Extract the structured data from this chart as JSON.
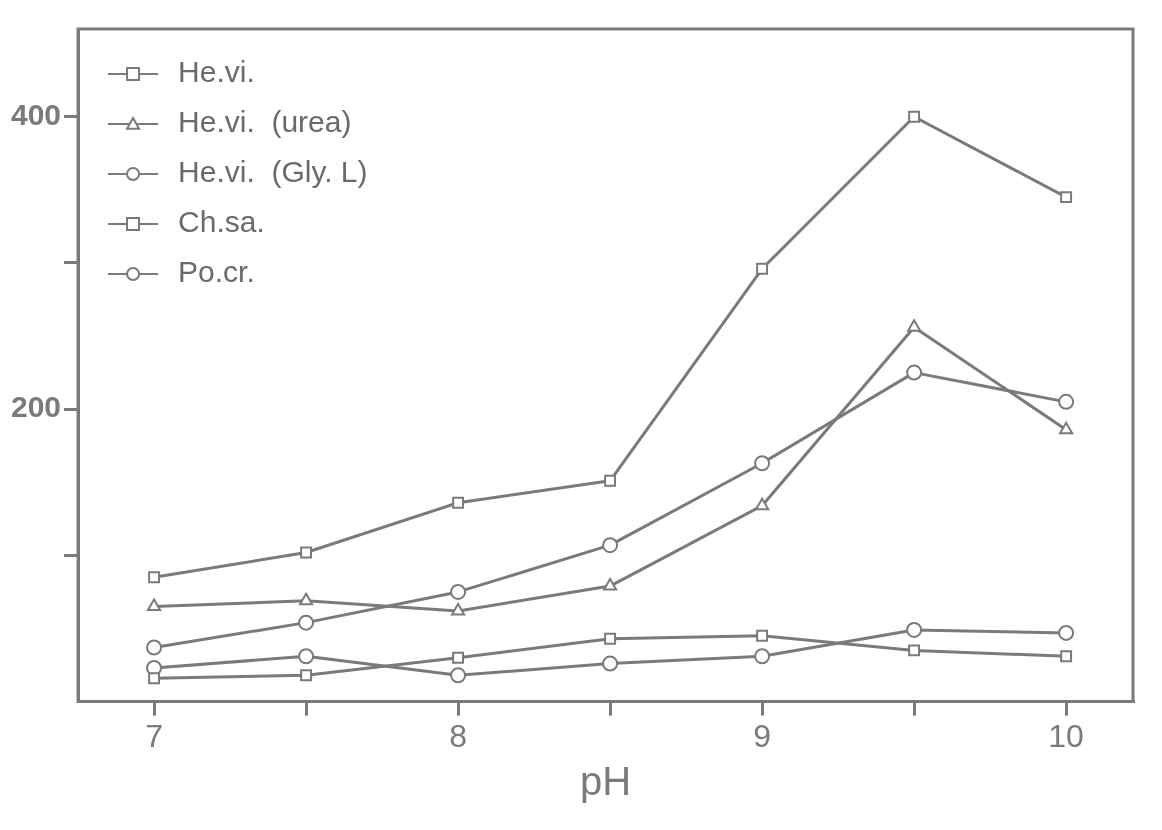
{
  "chart_data": {
    "type": "line",
    "xlabel": "pH",
    "x": [
      7,
      7.5,
      8,
      8.5,
      9,
      9.5,
      10
    ],
    "xlim": [
      6.75,
      10.22
    ],
    "xticks": [
      7,
      {
        "value": 7.5,
        "label": null
      },
      8,
      {
        "value": 8.5,
        "label": null
      },
      9,
      {
        "value": 9.5,
        "label": null
      },
      10
    ],
    "ylim": [
      0,
      460
    ],
    "yticks": [
      {
        "value": 100,
        "label": null
      },
      200,
      {
        "value": 300,
        "label": null
      },
      400
    ],
    "grid": false,
    "legend": "top left",
    "line_style": "solid",
    "series": [
      {
        "name": "He.vi.",
        "color": "#7a7a7a",
        "marker": "square",
        "values": [
          85,
          102,
          136,
          151,
          296,
          400,
          345
        ]
      },
      {
        "name": "He.vi.  (urea)",
        "color": "#7a7a7a",
        "marker": "triangle",
        "values": [
          65,
          69,
          62,
          79,
          134,
          256,
          186
        ]
      },
      {
        "name": "He.vi.  (Gly. L)",
        "color": "#7a7a7a",
        "marker": "circle",
        "values": [
          37,
          54,
          75,
          107,
          163,
          225,
          205
        ]
      },
      {
        "name": "Ch.sa.",
        "color": "#7a7a7a",
        "marker": "square",
        "values": [
          16,
          18,
          30,
          43,
          45,
          35,
          31
        ]
      },
      {
        "name": "Po.cr.",
        "color": "#7a7a7a",
        "marker": "circle",
        "values": [
          23,
          31,
          18,
          26,
          31,
          49,
          47
        ]
      }
    ]
  }
}
